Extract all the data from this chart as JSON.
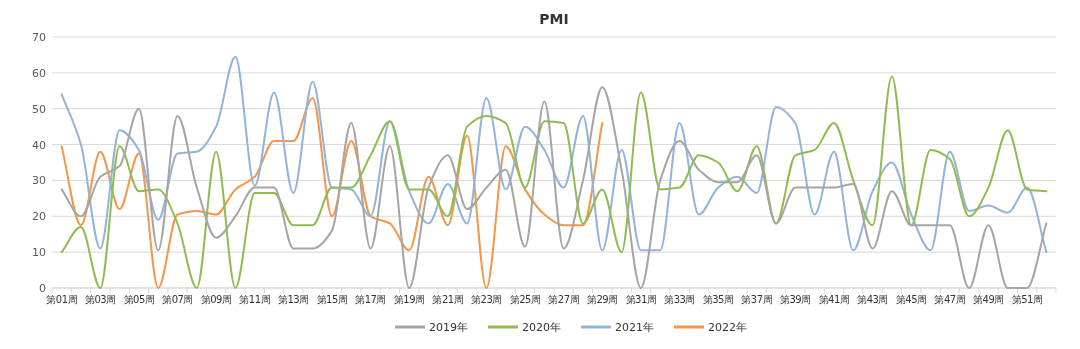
{
  "chart_data": {
    "type": "line",
    "title": "PMI",
    "categories": [
      "第01周",
      null,
      "第03周",
      null,
      "第05周",
      null,
      "第07周",
      null,
      "第09周",
      null,
      "第11周",
      null,
      "第13周",
      null,
      "第15周",
      null,
      "第17周",
      null,
      "第19周",
      null,
      "第21周",
      null,
      "第23周",
      null,
      "第25周",
      null,
      "第27周",
      null,
      "第29周",
      null,
      "第31周",
      null,
      "第33周",
      null,
      "第35周",
      null,
      "第37周",
      null,
      "第39周",
      null,
      "第41周",
      null,
      "第43周",
      null,
      "第45周",
      null,
      "第47周",
      null,
      "第49周",
      null,
      "第51周",
      null
    ],
    "series": [
      {
        "name": "2019年",
        "color": "#a5a5a5",
        "values": [
          27.5,
          20,
          31,
          34,
          50,
          10.5,
          48,
          28,
          14,
          20,
          28,
          28,
          11,
          11,
          16,
          46,
          11,
          39.5,
          0,
          28,
          37,
          22,
          28,
          33,
          11.5,
          52,
          11,
          30,
          56,
          33,
          0,
          30,
          41,
          33,
          29.5,
          29.5,
          37,
          18,
          28,
          28,
          28,
          29,
          11,
          27,
          17.5,
          17.5,
          17.5,
          0,
          17.5,
          0,
          0,
          18
        ]
      },
      {
        "name": "2020年",
        "color": "#8fbc4f",
        "values": [
          10,
          17,
          0,
          39.5,
          27,
          27.5,
          18,
          0,
          38,
          0,
          26.5,
          26.5,
          17.5,
          17.5,
          28,
          28,
          37,
          46.5,
          27.5,
          27.5,
          20,
          45,
          48,
          46,
          28,
          46.5,
          46,
          18,
          27.5,
          10,
          54.5,
          27.5,
          28,
          37,
          35,
          27,
          39.5,
          18,
          37,
          38.5,
          46,
          30,
          17.5,
          59,
          17.5,
          38.5,
          36,
          20,
          28,
          44,
          27.5,
          27
        ]
      },
      {
        "name": "2021年",
        "color": "#92b4dc",
        "values": [
          54,
          40,
          11,
          44,
          38.5,
          19,
          37.5,
          38,
          45,
          64.5,
          28.5,
          54.5,
          26.5,
          57.5,
          28,
          27.5,
          20,
          46.5,
          27,
          18,
          29,
          18,
          53,
          27.5,
          45,
          38.5,
          28,
          48,
          10.5,
          38.5,
          10.5,
          10.5,
          46,
          20.5,
          28,
          31,
          26.5,
          50.5,
          46,
          20.5,
          38,
          10.5,
          27,
          35,
          20.5,
          10.5,
          38,
          21.5,
          23,
          21,
          28,
          10
        ]
      },
      {
        "name": "2022年",
        "color": "#f7954a",
        "values": [
          39.5,
          17.5,
          38,
          22,
          37.5,
          0,
          20.5,
          21.5,
          20.5,
          27.5,
          31,
          41,
          41,
          53,
          20,
          41,
          20,
          18,
          10.5,
          31,
          17.5,
          42.5,
          0,
          39.5,
          27.5,
          20.5,
          17.5,
          17.5,
          46,
          null,
          null,
          null,
          null,
          null,
          null,
          null,
          null,
          null,
          null,
          null,
          null,
          null,
          null,
          null,
          null,
          null,
          null,
          null,
          null,
          null,
          null,
          null
        ]
      }
    ],
    "ylim": [
      0,
      70
    ],
    "yticks": [
      0,
      10,
      20,
      30,
      40,
      50,
      60,
      70
    ],
    "grid": "y",
    "legend": "bottom"
  }
}
